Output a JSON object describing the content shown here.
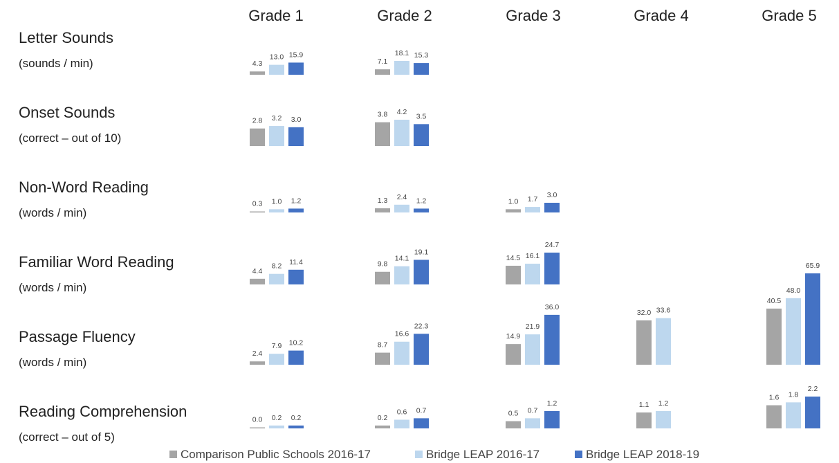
{
  "chart_data": {
    "type": "bar",
    "grades": [
      "Grade 1",
      "Grade 2",
      "Grade 3",
      "Grade 4",
      "Grade 5"
    ],
    "series": [
      {
        "name": "Comparison Public Schools 2016-17",
        "color": "#a5a5a5"
      },
      {
        "name": "Bridge LEAP 2016-17",
        "color": "#bdd7ee"
      },
      {
        "name": "Bridge LEAP 2018-19",
        "color": "#4472c4"
      }
    ],
    "measures": [
      {
        "label": "Letter Sounds",
        "unit": "(sounds / min)",
        "values": [
          [
            "4.3",
            "13.0",
            "15.9"
          ],
          [
            "7.1",
            "18.1",
            "15.3"
          ],
          null,
          null,
          null
        ]
      },
      {
        "label": "Onset Sounds",
        "unit": "(correct – out of 10)",
        "values": [
          [
            "2.8",
            "3.2",
            "3.0"
          ],
          [
            "3.8",
            "4.2",
            "3.5"
          ],
          null,
          null,
          null
        ]
      },
      {
        "label": "Non-Word Reading",
        "unit": "(words / min)",
        "values": [
          [
            "0.3",
            "1.0",
            "1.2"
          ],
          [
            "1.3",
            "2.4",
            "1.2"
          ],
          [
            "1.0",
            "1.7",
            "3.0"
          ],
          null,
          null
        ]
      },
      {
        "label": "Familiar Word Reading",
        "unit": "(words / min)",
        "values": [
          [
            "4.4",
            "8.2",
            "11.4"
          ],
          [
            "9.8",
            "14.1",
            "19.1"
          ],
          [
            "14.5",
            "16.1",
            "24.7"
          ],
          null,
          null
        ]
      },
      {
        "label": "Passage Fluency",
        "unit": "(words / min)",
        "values": [
          [
            "2.4",
            "7.9",
            "10.2"
          ],
          [
            "8.7",
            "16.6",
            "22.3"
          ],
          [
            "14.9",
            "21.9",
            "36.0"
          ],
          [
            "32.0",
            "33.6"
          ],
          [
            "40.5",
            "48.0",
            "65.9"
          ]
        ]
      },
      {
        "label": "Reading Comprehension",
        "unit": "(correct – out of 5)",
        "values": [
          [
            "0.0",
            "0.2",
            "0.2"
          ],
          [
            "0.2",
            "0.6",
            "0.7"
          ],
          [
            "0.5",
            "0.7",
            "1.2"
          ],
          [
            "1.1",
            "1.2"
          ],
          [
            "1.6",
            "1.8",
            "2.2"
          ]
        ]
      }
    ]
  }
}
